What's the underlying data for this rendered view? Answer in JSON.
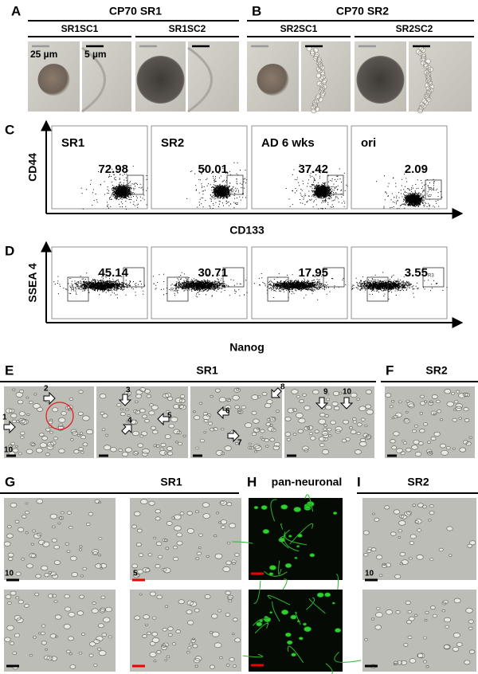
{
  "panel_a": {
    "label": "A",
    "title": "CP70 SR1",
    "columns": [
      "SR1SC1",
      "SR1SC2"
    ],
    "scale_labels": [
      "25 µm",
      "5 µm"
    ]
  },
  "panel_b": {
    "label": "B",
    "title": "CP70 SR2",
    "columns": [
      "SR2SC1",
      "SR2SC2"
    ]
  },
  "panel_c": {
    "label": "C",
    "y_label": "CD44",
    "x_label": "CD133",
    "plots": [
      {
        "name": "SR1",
        "value": 72.98
      },
      {
        "name": "SR2",
        "value": 50.01
      },
      {
        "name": "AD 6 wks",
        "value": 37.42
      },
      {
        "name": "ori",
        "value": 2.09,
        "gate": "R4"
      }
    ]
  },
  "panel_d": {
    "label": "D",
    "y_label": "SSEA 4",
    "x_label": "Nanog",
    "plots": [
      {
        "value": 45.14,
        "gate": "R2"
      },
      {
        "value": 30.71,
        "gate": "R2"
      },
      {
        "value": 17.95,
        "gate": "R2"
      },
      {
        "value": 3.55,
        "gate": "R3"
      }
    ]
  },
  "panel_e": {
    "label": "E",
    "title": "SR1",
    "arrows": [
      "1",
      "2",
      "3",
      "4",
      "5",
      "6",
      "7",
      "8",
      "9",
      "10"
    ],
    "scale_label": "10"
  },
  "panel_f": {
    "label": "F",
    "title": "SR2"
  },
  "panel_g": {
    "label": "G",
    "title": "SR1",
    "scale_labels": [
      "10",
      "5"
    ]
  },
  "panel_h": {
    "label": "H",
    "title": "pan-neuronal"
  },
  "panel_i": {
    "label": "I",
    "title": "SR2",
    "scale_label": "10"
  }
}
